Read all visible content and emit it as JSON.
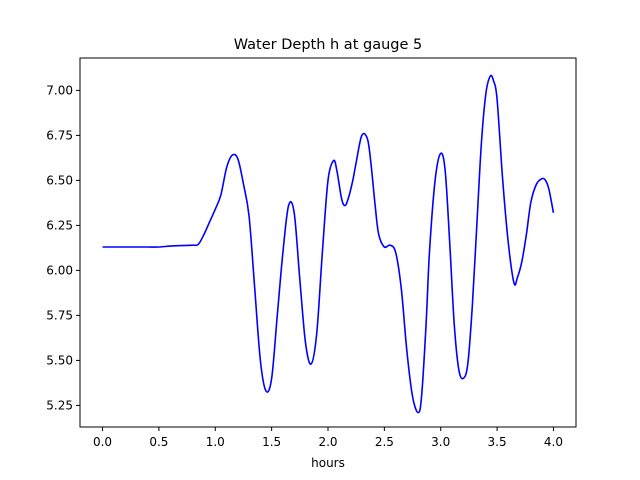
{
  "chart_data": {
    "type": "line",
    "title": "Water Depth h at gauge 5",
    "xlabel": "hours",
    "ylabel": "",
    "xlim": [
      -0.2,
      4.2
    ],
    "ylim": [
      5.13,
      7.18
    ],
    "grid": false,
    "xticks": [
      0.0,
      0.5,
      1.0,
      1.5,
      2.0,
      2.5,
      3.0,
      3.5,
      4.0
    ],
    "xtick_labels": [
      "0.0",
      "0.5",
      "1.0",
      "1.5",
      "2.0",
      "2.5",
      "3.0",
      "3.5",
      "4.0"
    ],
    "yticks": [
      5.25,
      5.5,
      5.75,
      6.0,
      6.25,
      6.5,
      6.75,
      7.0
    ],
    "ytick_labels": [
      "5.25",
      "5.50",
      "5.75",
      "6.00",
      "6.25",
      "6.50",
      "6.75",
      "7.00"
    ],
    "series": [
      {
        "color": "#0000ff",
        "x": [
          0.0,
          0.1,
          0.2,
          0.3,
          0.4,
          0.5,
          0.6,
          0.7,
          0.8,
          0.85,
          0.9,
          0.95,
          1.0,
          1.05,
          1.1,
          1.15,
          1.2,
          1.25,
          1.3,
          1.35,
          1.4,
          1.45,
          1.5,
          1.55,
          1.6,
          1.65,
          1.7,
          1.75,
          1.8,
          1.85,
          1.9,
          1.95,
          2.0,
          2.05,
          2.08,
          2.12,
          2.15,
          2.18,
          2.22,
          2.25,
          2.3,
          2.35,
          2.38,
          2.42,
          2.45,
          2.5,
          2.55,
          2.6,
          2.65,
          2.7,
          2.75,
          2.8,
          2.83,
          2.87,
          2.9,
          2.95,
          3.0,
          3.04,
          3.08,
          3.12,
          3.16,
          3.2,
          3.24,
          3.28,
          3.32,
          3.36,
          3.4,
          3.44,
          3.47,
          3.5,
          3.55,
          3.6,
          3.65,
          3.68,
          3.72,
          3.76,
          3.8,
          3.85,
          3.9,
          3.93,
          3.96,
          4.0
        ],
        "y": [
          6.13,
          6.13,
          6.13,
          6.13,
          6.13,
          6.13,
          6.135,
          6.138,
          6.14,
          6.145,
          6.2,
          6.27,
          6.34,
          6.42,
          6.57,
          6.64,
          6.62,
          6.48,
          6.3,
          5.9,
          5.5,
          5.33,
          5.4,
          5.75,
          6.1,
          6.36,
          6.32,
          5.95,
          5.6,
          5.48,
          5.65,
          6.1,
          6.5,
          6.61,
          6.55,
          6.4,
          6.36,
          6.4,
          6.5,
          6.6,
          6.75,
          6.73,
          6.6,
          6.35,
          6.2,
          6.13,
          6.14,
          6.1,
          5.9,
          5.55,
          5.3,
          5.21,
          5.3,
          5.7,
          6.1,
          6.5,
          6.65,
          6.55,
          6.15,
          5.7,
          5.45,
          5.4,
          5.48,
          5.8,
          6.25,
          6.7,
          6.98,
          7.08,
          7.05,
          6.95,
          6.5,
          6.15,
          5.93,
          5.96,
          6.05,
          6.2,
          6.38,
          6.48,
          6.51,
          6.5,
          6.45,
          6.32
        ]
      }
    ]
  }
}
